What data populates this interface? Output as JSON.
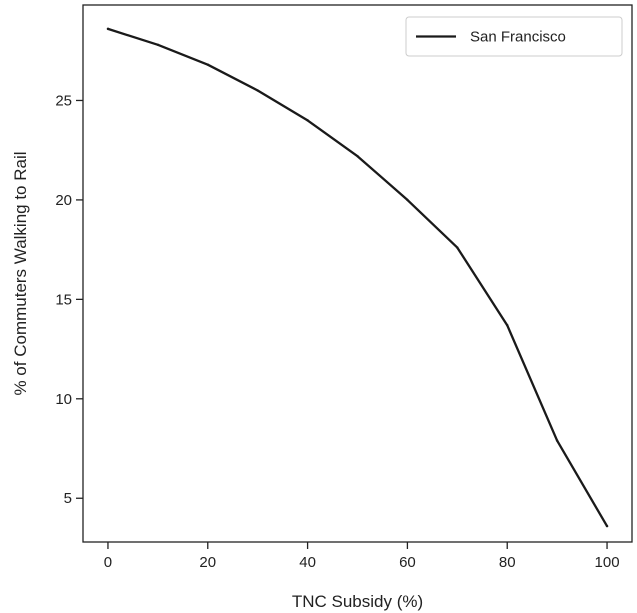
{
  "chart_data": {
    "type": "line",
    "title": "",
    "xlabel": "TNC Subsidy (%)",
    "ylabel": "% of Commuters Walking to Rail",
    "xlim": [
      -5,
      105
    ],
    "ylim": [
      2.8,
      29.8
    ],
    "xticks": [
      0,
      20,
      40,
      60,
      80,
      100
    ],
    "yticks": [
      5,
      10,
      15,
      20,
      25
    ],
    "grid": false,
    "legend_position": "top-right",
    "series": [
      {
        "name": "San Francisco",
        "color": "#1a1a1a",
        "x": [
          0,
          10,
          20,
          30,
          40,
          50,
          60,
          70,
          80,
          90,
          100
        ],
        "values": [
          28.6,
          27.8,
          26.8,
          25.5,
          24.0,
          22.2,
          20.0,
          17.6,
          13.7,
          7.9,
          3.6
        ]
      }
    ]
  }
}
